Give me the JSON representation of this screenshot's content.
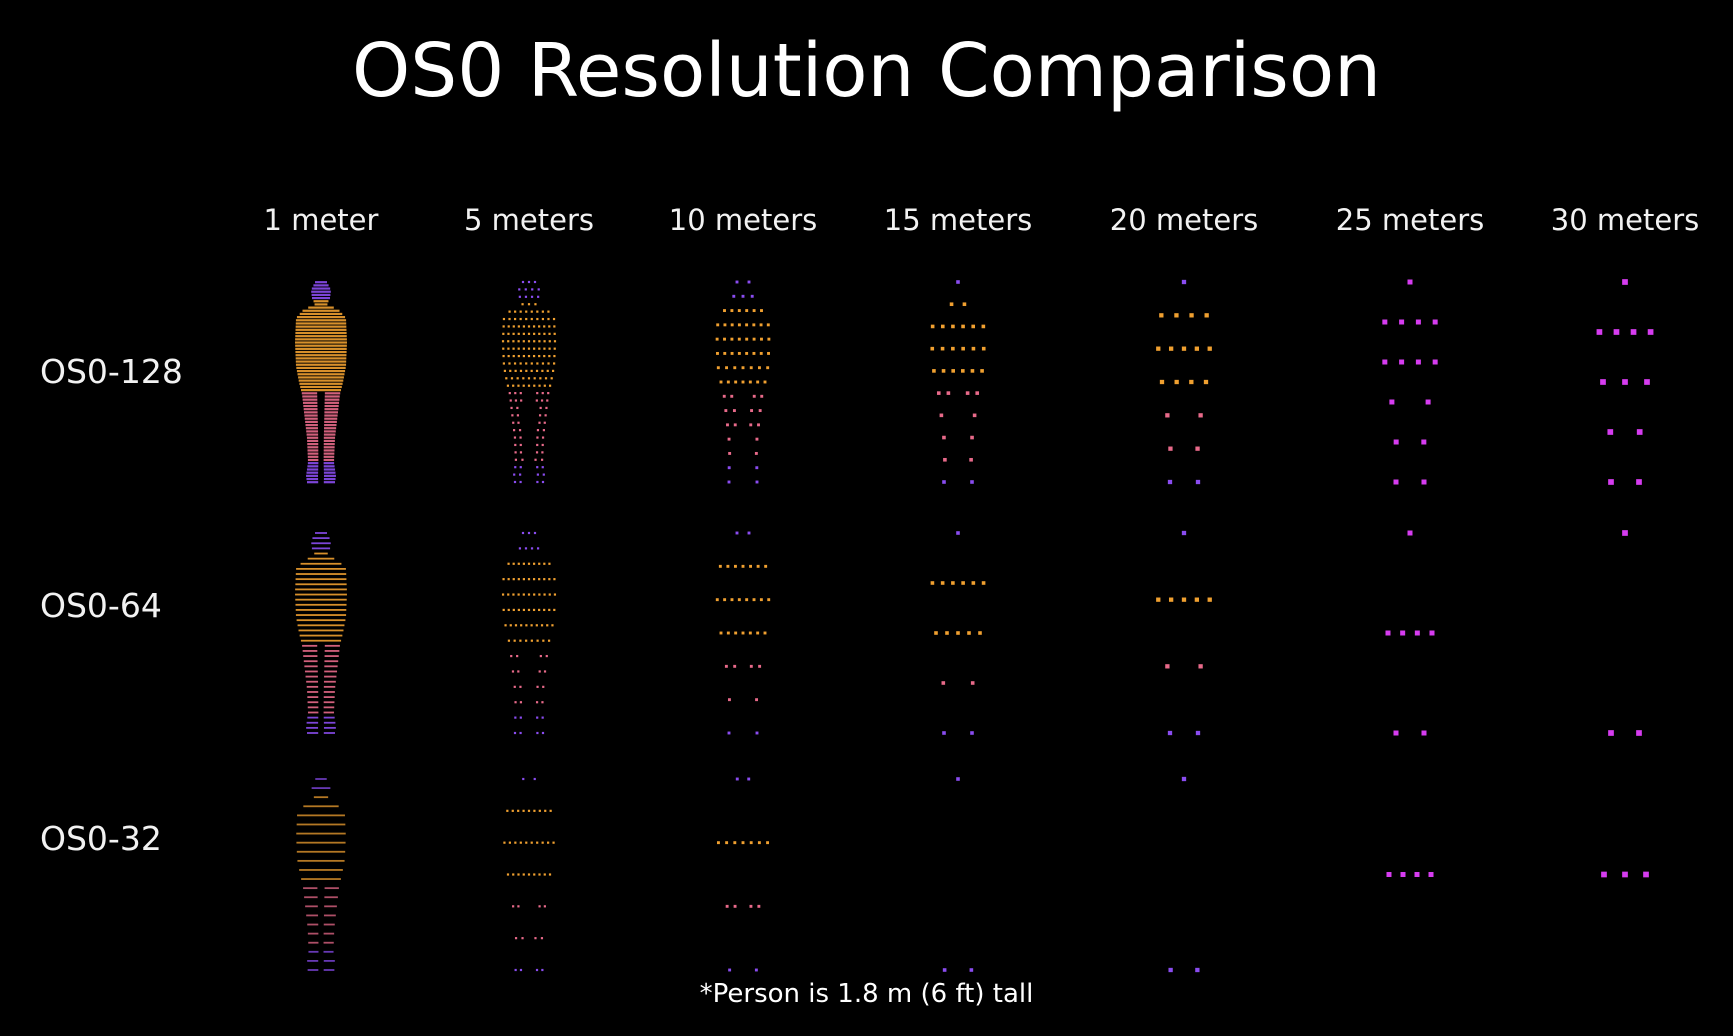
{
  "title": "OS0 Resolution Comparison",
  "columns": [
    {
      "label": "1 meter"
    },
    {
      "label": "5 meters"
    },
    {
      "label": "10 meters"
    },
    {
      "label": "15 meters"
    },
    {
      "label": "20 meters"
    },
    {
      "label": "25 meters"
    },
    {
      "label": "30 meters"
    }
  ],
  "rows": [
    {
      "label": "OS0-128"
    },
    {
      "label": "OS0-64"
    },
    {
      "label": "OS0-32"
    }
  ],
  "footnote": "*Person is 1.8 m (6 ft) tall",
  "colors": {
    "background": "#000000",
    "text": "#ffffff",
    "point_warm": "#f0a030",
    "point_mid": "#e86a8a",
    "point_magenta": "#d63cf0",
    "point_violet": "#8a4cf0"
  }
}
